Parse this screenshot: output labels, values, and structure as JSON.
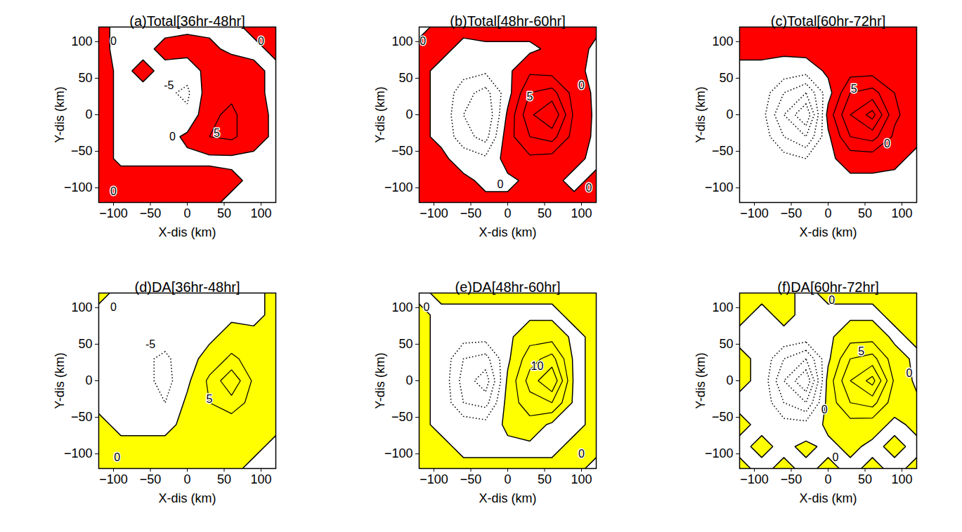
{
  "chart_data": [
    {
      "type": "contour",
      "title": "(a)Total[36hr-48hr]",
      "xlabel": "X-dis (km)",
      "ylabel": "Y-dis (km)",
      "xlim": [
        -120,
        120
      ],
      "ylim": [
        -120,
        120
      ],
      "xticks": [
        -100,
        -50,
        0,
        50,
        100
      ],
      "yticks": [
        -100,
        -50,
        0,
        50,
        100
      ],
      "color": "#ff0000",
      "levels": [
        -30,
        -25,
        -20,
        -15,
        -10,
        -5,
        0,
        5,
        10,
        15,
        20
      ],
      "x": [
        -120,
        -90,
        -60,
        -30,
        0,
        30,
        60,
        90,
        120
      ],
      "y": [
        -120,
        -90,
        -60,
        -30,
        0,
        30,
        60,
        90,
        120
      ],
      "z": [
        [
          2,
          2,
          2,
          2,
          1,
          1,
          -1,
          -1,
          -1
        ],
        [
          2,
          2,
          2,
          2,
          2,
          2,
          1,
          -1,
          -1
        ],
        [
          2,
          -1,
          -1,
          -1,
          -1,
          -1,
          -1,
          -1,
          -1
        ],
        [
          2,
          -1,
          -1,
          -2,
          1,
          5,
          6,
          2,
          -1
        ],
        [
          2,
          -1,
          -2,
          -5,
          -4,
          4,
          6,
          2,
          -1
        ],
        [
          2,
          -1,
          -1,
          -4,
          -6,
          3,
          4,
          1,
          -1
        ],
        [
          2,
          -1,
          1,
          -1,
          -3,
          2,
          3,
          1,
          -1
        ],
        [
          1,
          -1,
          -1,
          1,
          2,
          1,
          -1,
          -1,
          1
        ],
        [
          1,
          -1,
          -1,
          -1,
          -1,
          -1,
          -1,
          1,
          2
        ]
      ],
      "contour_labels": [
        {
          "value": -5,
          "x": -25,
          "y": 40
        },
        {
          "value": 0,
          "x": -20,
          "y": -30
        },
        {
          "value": 5,
          "x": 40,
          "y": -25
        },
        {
          "value": 0,
          "x": -100,
          "y": 100
        },
        {
          "value": 0,
          "x": 100,
          "y": 100
        },
        {
          "value": 0,
          "x": -100,
          "y": -105
        }
      ]
    },
    {
      "type": "contour",
      "title": "(b)Total[48hr-60hr]",
      "xlabel": "X-dis (km)",
      "ylabel": "Y-dis (km)",
      "xlim": [
        -120,
        120
      ],
      "ylim": [
        -120,
        120
      ],
      "xticks": [
        -100,
        -50,
        0,
        50,
        100
      ],
      "yticks": [
        -100,
        -50,
        0,
        50,
        100
      ],
      "color": "#ff0000",
      "levels": [
        -30,
        -25,
        -20,
        -15,
        -10,
        -5,
        0,
        5,
        10,
        15,
        20
      ],
      "x": [
        -120,
        -90,
        -60,
        -30,
        0,
        30,
        60,
        90,
        120
      ],
      "y": [
        -120,
        -90,
        -60,
        -30,
        0,
        30,
        60,
        90,
        120
      ],
      "z": [
        [
          2,
          1,
          1,
          1,
          1,
          1,
          1,
          1,
          2
        ],
        [
          1,
          1,
          1,
          -1,
          -1,
          1,
          1,
          -1,
          1
        ],
        [
          1,
          1,
          -2,
          -4,
          2,
          4,
          3,
          1,
          -1
        ],
        [
          1,
          -1,
          -8,
          -12,
          3,
          10,
          12,
          3,
          -1
        ],
        [
          1,
          -1,
          -10,
          -15,
          1,
          14,
          20,
          4,
          -1
        ],
        [
          1,
          -1,
          -8,
          -12,
          -2,
          10,
          12,
          3,
          -1
        ],
        [
          1,
          -1,
          -3,
          -4,
          -1,
          4,
          3,
          1,
          -1
        ],
        [
          1,
          1,
          -1,
          -1,
          -1,
          -1,
          1,
          2,
          -1
        ],
        [
          -1,
          1,
          1,
          2,
          2,
          2,
          2,
          2,
          1
        ]
      ],
      "contour_labels": [
        {
          "value": 5,
          "x": 30,
          "y": 25
        },
        {
          "value": 0,
          "x": 100,
          "y": 40
        },
        {
          "value": 0,
          "x": -115,
          "y": 100
        },
        {
          "value": 0,
          "x": -10,
          "y": -95
        },
        {
          "value": 0,
          "x": 110,
          "y": -100
        }
      ]
    },
    {
      "type": "contour",
      "title": "(c)Total[60hr-72hr]",
      "xlabel": "X-dis (km)",
      "ylabel": "Y-dis (km)",
      "xlim": [
        -120,
        120
      ],
      "ylim": [
        -120,
        120
      ],
      "xticks": [
        -100,
        -50,
        0,
        50,
        100
      ],
      "yticks": [
        -100,
        -50,
        0,
        50,
        100
      ],
      "color": "#ff0000",
      "levels": [
        -30,
        -25,
        -20,
        -15,
        -10,
        -5,
        0,
        5,
        10,
        15,
        20
      ],
      "x": [
        -120,
        -90,
        -60,
        -30,
        0,
        30,
        60,
        90,
        120
      ],
      "y": [
        -120,
        -90,
        -60,
        -30,
        0,
        30,
        60,
        90,
        120
      ],
      "z": [
        [
          -1,
          -1,
          -1,
          -1,
          -1,
          -1,
          -1,
          -1,
          -1
        ],
        [
          -1,
          -1,
          -1,
          -1,
          -1,
          -1,
          -1,
          -1,
          -1
        ],
        [
          -1,
          -1,
          -3,
          -5,
          -1,
          2,
          2,
          1,
          -1
        ],
        [
          -1,
          -2,
          -10,
          -15,
          -1,
          10,
          12,
          4,
          1
        ],
        [
          -1,
          -3,
          -15,
          -25,
          2,
          15,
          22,
          6,
          2
        ],
        [
          -1,
          -2,
          -10,
          -15,
          -2,
          10,
          12,
          5,
          2
        ],
        [
          -1,
          -1,
          -2,
          -3,
          1,
          3,
          3,
          2,
          2
        ],
        [
          1,
          1,
          1,
          2,
          2,
          2,
          2,
          2,
          2
        ],
        [
          2,
          2,
          2,
          2,
          2,
          2,
          2,
          2,
          2
        ]
      ],
      "contour_labels": [
        {
          "value": 5,
          "x": 35,
          "y": 35
        },
        {
          "value": 0,
          "x": 80,
          "y": -40
        }
      ]
    },
    {
      "type": "contour",
      "title": "(d)DA[36hr-48hr]",
      "xlabel": "X-dis (km)",
      "ylabel": "Y-dis (km)",
      "xlim": [
        -120,
        120
      ],
      "ylim": [
        -120,
        120
      ],
      "xticks": [
        -100,
        -50,
        0,
        50,
        100
      ],
      "yticks": [
        -100,
        -50,
        0,
        50,
        100
      ],
      "color": "#ffff00",
      "levels": [
        -30,
        -25,
        -20,
        -15,
        -10,
        -5,
        0,
        5,
        10,
        15,
        20
      ],
      "x": [
        -120,
        -90,
        -60,
        -30,
        0,
        30,
        60,
        90,
        120
      ],
      "y": [
        -120,
        -90,
        -60,
        -30,
        0,
        30,
        60,
        90,
        120
      ],
      "z": [
        [
          2,
          1,
          1,
          1,
          1,
          1,
          1,
          -1,
          -1
        ],
        [
          1,
          1,
          1,
          1,
          1,
          1,
          1,
          1,
          -1
        ],
        [
          1,
          -1,
          -1,
          -1,
          1,
          2,
          2,
          1,
          1
        ],
        [
          -1,
          -1,
          -2,
          -5,
          1,
          5,
          8,
          3,
          1
        ],
        [
          -1,
          -1,
          -3,
          -7,
          -1,
          6,
          14,
          4,
          1
        ],
        [
          -1,
          -1,
          -4,
          -6,
          -2,
          2,
          6,
          3,
          1
        ],
        [
          -1,
          -1,
          -2,
          -3,
          -1,
          -1,
          2,
          1,
          1
        ],
        [
          -1,
          -1,
          -1,
          -1,
          -1,
          -1,
          -1,
          -1,
          1
        ],
        [
          1,
          -1,
          -1,
          -1,
          -1,
          -1,
          -1,
          -1,
          1
        ]
      ],
      "contour_labels": [
        {
          "value": -5,
          "x": -50,
          "y": 50
        },
        {
          "value": 5,
          "x": 30,
          "y": -25
        },
        {
          "value": 0,
          "x": -100,
          "y": 100
        },
        {
          "value": 0,
          "x": -95,
          "y": -105
        }
      ]
    },
    {
      "type": "contour",
      "title": "(e)DA[48hr-60hr]",
      "xlabel": "X-dis (km)",
      "ylabel": "Y-dis (km)",
      "xlim": [
        -120,
        120
      ],
      "ylim": [
        -120,
        120
      ],
      "xticks": [
        -100,
        -50,
        0,
        50,
        100
      ],
      "yticks": [
        -100,
        -50,
        0,
        50,
        100
      ],
      "color": "#ffff00",
      "levels": [
        -30,
        -25,
        -20,
        -15,
        -10,
        -5,
        0,
        5,
        10,
        15,
        20
      ],
      "x": [
        -120,
        -90,
        -60,
        -30,
        0,
        30,
        60,
        90,
        120
      ],
      "y": [
        -120,
        -90,
        -60,
        -30,
        0,
        30,
        60,
        90,
        120
      ],
      "z": [
        [
          1,
          1,
          1,
          1,
          1,
          1,
          1,
          1,
          -1
        ],
        [
          1,
          1,
          -1,
          -1,
          -1,
          -1,
          -1,
          1,
          1
        ],
        [
          1,
          -1,
          -2,
          -3,
          1,
          3,
          -1,
          -1,
          1
        ],
        [
          1,
          -1,
          -10,
          -12,
          2,
          8,
          10,
          -1,
          1
        ],
        [
          1,
          -1,
          -12,
          -18,
          1,
          12,
          20,
          -1,
          1
        ],
        [
          1,
          -1,
          -10,
          -12,
          -1,
          8,
          12,
          -1,
          1
        ],
        [
          1,
          -1,
          -3,
          -3,
          -1,
          3,
          3,
          -1,
          1
        ],
        [
          1,
          -1,
          -1,
          -1,
          -1,
          -1,
          -1,
          1,
          1
        ],
        [
          -1,
          1,
          1,
          1,
          1,
          1,
          1,
          1,
          1
        ]
      ],
      "contour_labels": [
        {
          "value": 10,
          "x": 40,
          "y": 20
        },
        {
          "value": 0,
          "x": -110,
          "y": 100
        },
        {
          "value": 0,
          "x": 100,
          "y": -100
        }
      ]
    },
    {
      "type": "contour",
      "title": "(f)DA[60hr-72hr]",
      "xlabel": "X-dis (km)",
      "ylabel": "Y-dis (km)",
      "xlim": [
        -120,
        120
      ],
      "ylim": [
        -120,
        120
      ],
      "xticks": [
        -100,
        -50,
        0,
        50,
        100
      ],
      "yticks": [
        -100,
        -50,
        0,
        50,
        100
      ],
      "color": "#ffff00",
      "levels": [
        -30,
        -25,
        -20,
        -15,
        -10,
        -5,
        0,
        5,
        10,
        15,
        20
      ],
      "x": [
        -120,
        -90,
        -60,
        -30,
        0,
        30,
        60,
        90,
        120
      ],
      "y": [
        -120,
        -90,
        -60,
        -30,
        0,
        30,
        60,
        90,
        120
      ],
      "z": [
        [
          1,
          -1,
          1,
          -1,
          1,
          -1,
          1,
          -1,
          1
        ],
        [
          -1,
          1,
          -1,
          1,
          -1,
          1,
          -1,
          1,
          -1
        ],
        [
          1,
          -1,
          -3,
          -3,
          1,
          3,
          2,
          -1,
          1
        ],
        [
          -1,
          -1,
          -10,
          -15,
          2,
          10,
          12,
          2,
          1
        ],
        [
          1,
          -1,
          -15,
          -25,
          2,
          15,
          22,
          4,
          -1
        ],
        [
          1,
          -1,
          -10,
          -15,
          -1,
          10,
          12,
          2,
          -1
        ],
        [
          -1,
          -1,
          -1,
          -2,
          -1,
          3,
          3,
          -1,
          1
        ],
        [
          1,
          -1,
          1,
          -1,
          -1,
          -1,
          -1,
          1,
          1
        ],
        [
          1,
          1,
          1,
          -1,
          1,
          1,
          1,
          1,
          1
        ]
      ],
      "contour_labels": [
        {
          "value": 0,
          "x": 5,
          "y": 110
        },
        {
          "value": 5,
          "x": 45,
          "y": 40
        },
        {
          "value": 0,
          "x": -5,
          "y": -40
        },
        {
          "value": 0,
          "x": 10,
          "y": -105
        },
        {
          "value": 0,
          "x": 110,
          "y": 10
        }
      ]
    }
  ]
}
